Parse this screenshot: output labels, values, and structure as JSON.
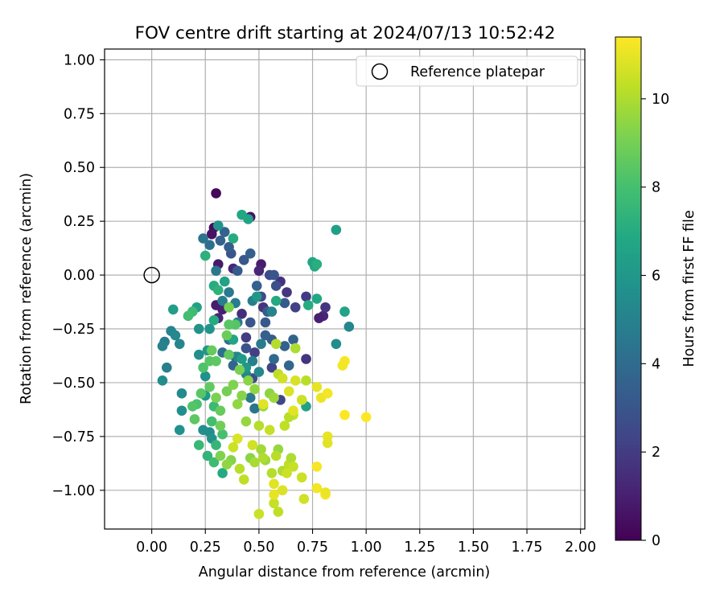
{
  "chart_data": {
    "type": "scatter",
    "title": "FOV centre drift starting at 2024/07/13 10:52:42",
    "xlabel": "Angular distance from reference (arcmin)",
    "ylabel": "Rotation from reference (arcmin)",
    "xlim": [
      -0.22,
      2.02
    ],
    "ylim": [
      -1.18,
      1.05
    ],
    "x_ticks": [
      0.0,
      0.25,
      0.5,
      0.75,
      1.0,
      1.25,
      1.5,
      1.75,
      2.0
    ],
    "x_tick_labels": [
      "0.00",
      "0.25",
      "0.50",
      "0.75",
      "1.00",
      "1.25",
      "1.50",
      "1.75",
      "2.00"
    ],
    "y_ticks": [
      -1.0,
      -0.75,
      -0.5,
      -0.25,
      0.0,
      0.25,
      0.5,
      0.75,
      1.0
    ],
    "y_tick_labels": [
      "−1.00",
      "−0.75",
      "−0.50",
      "−0.25",
      "0.00",
      "0.25",
      "0.50",
      "0.75",
      "1.00"
    ],
    "grid": true,
    "legend": {
      "placement": "top-right",
      "label": "Reference platepar"
    },
    "reference_point": {
      "x": 0.0,
      "y": 0.0
    },
    "colorbar": {
      "label": "Hours from first FF file",
      "range": [
        0,
        11.4
      ],
      "colormap": "viridis",
      "ticks": [
        0,
        2,
        4,
        6,
        8,
        10
      ],
      "tick_labels": [
        "0",
        "2",
        "4",
        "6",
        "8",
        "10"
      ]
    },
    "points": [
      [
        0.3,
        0.38,
        0.2
      ],
      [
        0.46,
        0.27,
        0.6
      ],
      [
        0.29,
        0.22,
        0.4
      ],
      [
        0.28,
        0.19,
        0.6
      ],
      [
        0.31,
        0.05,
        0.8
      ],
      [
        0.51,
        0.05,
        0.9
      ],
      [
        0.5,
        0.02,
        1.2
      ],
      [
        0.38,
        0.03,
        1.3
      ],
      [
        0.3,
        -0.14,
        0.9
      ],
      [
        0.33,
        -0.16,
        1.0
      ],
      [
        0.31,
        -0.2,
        1.2
      ],
      [
        0.42,
        -0.18,
        1.5
      ],
      [
        0.52,
        -0.15,
        1.7
      ],
      [
        0.6,
        -0.03,
        1.6
      ],
      [
        0.63,
        -0.08,
        1.8
      ],
      [
        0.72,
        -0.1,
        2.0
      ],
      [
        0.67,
        -0.15,
        2.2
      ],
      [
        0.72,
        -0.39,
        1.7
      ],
      [
        0.8,
        -0.19,
        1.2
      ],
      [
        0.78,
        -0.2,
        1.0
      ],
      [
        0.81,
        -0.15,
        1.8
      ],
      [
        0.44,
        -0.29,
        2.0
      ],
      [
        0.48,
        -0.36,
        2.1
      ],
      [
        0.56,
        -0.43,
        2.3
      ],
      [
        0.6,
        -0.58,
        2.4
      ],
      [
        0.47,
        -0.48,
        2.7
      ],
      [
        0.44,
        -0.34,
        2.9
      ],
      [
        0.46,
        -0.22,
        3.0
      ],
      [
        0.53,
        -0.22,
        3.2
      ],
      [
        0.56,
        -0.3,
        3.3
      ],
      [
        0.62,
        -0.33,
        3.5
      ],
      [
        0.66,
        -0.3,
        3.6
      ],
      [
        0.64,
        -0.42,
        3.8
      ],
      [
        0.57,
        -0.39,
        3.9
      ],
      [
        0.51,
        -0.1,
        2.5
      ],
      [
        0.55,
        0.0,
        2.6
      ],
      [
        0.58,
        -0.05,
        2.8
      ],
      [
        0.53,
        -0.28,
        3.4
      ],
      [
        0.38,
        -0.42,
        3.7
      ],
      [
        0.43,
        -0.44,
        3.8
      ],
      [
        0.39,
        -0.38,
        3.9
      ],
      [
        0.33,
        -0.36,
        4.1
      ],
      [
        0.36,
        -0.3,
        4.2
      ],
      [
        0.37,
        0.1,
        3.0
      ],
      [
        0.43,
        0.07,
        3.1
      ],
      [
        0.36,
        0.13,
        3.3
      ],
      [
        0.32,
        0.16,
        3.5
      ],
      [
        0.34,
        0.2,
        3.6
      ],
      [
        0.4,
        0.02,
        3.2
      ],
      [
        0.46,
        0.1,
        3.4
      ],
      [
        0.49,
        -0.05,
        3.5
      ],
      [
        0.54,
        -0.17,
        3.3
      ],
      [
        0.57,
        0.0,
        3.0
      ],
      [
        0.62,
        -0.13,
        3.2
      ],
      [
        0.27,
        0.14,
        4.2
      ],
      [
        0.24,
        0.17,
        4.4
      ],
      [
        0.3,
        0.02,
        4.5
      ],
      [
        0.36,
        -0.08,
        4.6
      ],
      [
        0.33,
        -0.12,
        4.8
      ],
      [
        0.39,
        -0.13,
        4.7
      ],
      [
        0.4,
        -0.22,
        4.6
      ],
      [
        0.47,
        -0.12,
        4.9
      ],
      [
        0.56,
        -0.17,
        5.0
      ],
      [
        0.51,
        -0.32,
        4.7
      ],
      [
        0.47,
        -0.4,
        4.9
      ],
      [
        0.4,
        -0.38,
        5.1
      ],
      [
        0.44,
        -0.46,
        5.2
      ],
      [
        0.5,
        -0.45,
        5.3
      ],
      [
        0.46,
        -0.57,
        4.6
      ],
      [
        0.48,
        -0.62,
        4.4
      ],
      [
        0.06,
        -0.31,
        4.8
      ],
      [
        0.05,
        -0.33,
        5.0
      ],
      [
        0.07,
        -0.43,
        4.9
      ],
      [
        0.09,
        -0.26,
        5.1
      ],
      [
        0.11,
        -0.28,
        5.3
      ],
      [
        0.13,
        -0.32,
        5.2
      ],
      [
        0.05,
        -0.49,
        5.5
      ],
      [
        0.14,
        -0.55,
        5.4
      ],
      [
        0.14,
        -0.63,
        5.6
      ],
      [
        0.13,
        -0.72,
        5.7
      ],
      [
        0.22,
        -0.37,
        5.6
      ],
      [
        0.22,
        -0.25,
        5.8
      ],
      [
        0.27,
        -0.25,
        5.9
      ],
      [
        0.26,
        -0.35,
        6.0
      ],
      [
        0.25,
        -0.47,
        5.7
      ],
      [
        0.27,
        -0.73,
        5.5
      ],
      [
        0.28,
        -0.76,
        5.8
      ],
      [
        0.24,
        -0.72,
        5.6
      ],
      [
        0.25,
        -0.56,
        6.1
      ],
      [
        0.21,
        -0.15,
        6.5
      ],
      [
        0.1,
        -0.16,
        6.3
      ],
      [
        0.92,
        -0.24,
        5.2
      ],
      [
        0.86,
        -0.32,
        5.5
      ],
      [
        0.9,
        -0.17,
        6.6
      ],
      [
        0.77,
        -0.11,
        6.8
      ],
      [
        0.73,
        -0.14,
        7.0
      ],
      [
        0.76,
        0.04,
        6.9
      ],
      [
        0.75,
        0.06,
        6.7
      ],
      [
        0.77,
        0.05,
        7.1
      ],
      [
        0.86,
        0.21,
        6.4
      ],
      [
        0.45,
        0.26,
        6.6
      ],
      [
        0.42,
        0.28,
        6.8
      ],
      [
        0.38,
        0.17,
        7.0
      ],
      [
        0.31,
        0.23,
        5.9
      ],
      [
        0.25,
        0.09,
        7.2
      ],
      [
        0.29,
        -0.05,
        7.0
      ],
      [
        0.31,
        -0.07,
        7.3
      ],
      [
        0.34,
        -0.03,
        6.5
      ],
      [
        0.49,
        -0.1,
        6.0
      ],
      [
        0.58,
        -0.12,
        6.9
      ],
      [
        0.42,
        -0.39,
        6.2
      ],
      [
        0.44,
        -0.43,
        6.0
      ],
      [
        0.38,
        -0.3,
        6.7
      ],
      [
        0.29,
        -0.21,
        7.0
      ],
      [
        0.72,
        -0.61,
        6.5
      ],
      [
        0.19,
        -0.17,
        7.8
      ],
      [
        0.17,
        -0.19,
        7.9
      ],
      [
        0.22,
        -0.79,
        7.6
      ],
      [
        0.3,
        -0.79,
        7.5
      ],
      [
        0.33,
        -0.92,
        6.9
      ],
      [
        0.26,
        -0.84,
        7.4
      ],
      [
        0.29,
        -0.87,
        7.8
      ],
      [
        0.33,
        -0.74,
        8.0
      ],
      [
        0.28,
        -0.68,
        7.9
      ],
      [
        0.29,
        -0.61,
        7.7
      ],
      [
        0.21,
        -0.6,
        8.1
      ],
      [
        0.19,
        -0.61,
        8.3
      ],
      [
        0.2,
        -0.67,
        8.5
      ],
      [
        0.23,
        -0.55,
        8.4
      ],
      [
        0.27,
        -0.52,
        8.6
      ],
      [
        0.24,
        -0.43,
        8.2
      ],
      [
        0.27,
        -0.4,
        8.4
      ],
      [
        0.28,
        -0.35,
        8.7
      ],
      [
        0.3,
        -0.4,
        8.5
      ],
      [
        0.36,
        -0.37,
        8.6
      ],
      [
        0.39,
        -0.23,
        8.3
      ],
      [
        0.36,
        -0.23,
        8.4
      ],
      [
        0.35,
        -0.28,
        8.8
      ],
      [
        0.36,
        -0.15,
        9.0
      ],
      [
        0.32,
        -0.63,
        8.7
      ],
      [
        0.32,
        -0.7,
        8.9
      ],
      [
        0.3,
        -0.57,
        9.1
      ],
      [
        0.35,
        -0.54,
        9.0
      ],
      [
        0.38,
        -0.51,
        9.2
      ],
      [
        0.41,
        -0.44,
        9.1
      ],
      [
        0.42,
        -0.56,
        9.3
      ],
      [
        0.45,
        -0.49,
        9.4
      ],
      [
        0.48,
        -0.53,
        9.5
      ],
      [
        0.52,
        -0.61,
        9.6
      ],
      [
        0.55,
        -0.55,
        9.4
      ],
      [
        0.57,
        -0.57,
        9.7
      ],
      [
        0.4,
        -0.6,
        9.5
      ],
      [
        0.44,
        -0.68,
        9.6
      ],
      [
        0.37,
        -0.86,
        9.3
      ],
      [
        0.35,
        -0.88,
        9.5
      ],
      [
        0.32,
        -0.84,
        9.2
      ],
      [
        0.46,
        -0.85,
        9.4
      ],
      [
        0.51,
        -0.81,
        9.8
      ],
      [
        0.53,
        -0.86,
        9.7
      ],
      [
        0.59,
        -0.81,
        9.6
      ],
      [
        0.48,
        -0.87,
        9.9
      ],
      [
        0.52,
        -0.85,
        10.0
      ],
      [
        0.56,
        -0.92,
        10.1
      ],
      [
        0.61,
        -0.91,
        10.0
      ],
      [
        0.58,
        -0.84,
        10.2
      ],
      [
        0.64,
        -0.88,
        10.3
      ],
      [
        0.65,
        -0.85,
        10.0
      ],
      [
        0.41,
        -0.9,
        10.2
      ],
      [
        0.43,
        -0.95,
        10.3
      ],
      [
        0.5,
        -1.11,
        10.5
      ],
      [
        0.57,
        -1.06,
        10.4
      ],
      [
        0.59,
        -1.1,
        10.3
      ],
      [
        0.61,
        -1.0,
        10.8
      ],
      [
        0.57,
        -0.97,
        10.9
      ],
      [
        0.57,
        -1.02,
        11.0
      ],
      [
        0.71,
        -1.04,
        10.6
      ],
      [
        0.7,
        -0.94,
        10.5
      ],
      [
        0.66,
        -0.89,
        10.4
      ],
      [
        0.63,
        -0.92,
        10.5
      ],
      [
        0.66,
        -0.65,
        10.4
      ],
      [
        0.64,
        -0.66,
        10.2
      ],
      [
        0.67,
        -0.34,
        10.0
      ],
      [
        0.58,
        -0.32,
        10.1
      ],
      [
        0.59,
        -0.46,
        10.3
      ],
      [
        0.61,
        -0.48,
        10.6
      ],
      [
        0.64,
        -0.54,
        10.8
      ],
      [
        0.67,
        -0.49,
        10.7
      ],
      [
        0.72,
        -0.49,
        10.2
      ],
      [
        0.7,
        -0.58,
        10.5
      ],
      [
        0.66,
        -0.63,
        10.9
      ],
      [
        0.77,
        -0.99,
        11.2
      ],
      [
        0.81,
        -1.02,
        11.3
      ],
      [
        0.81,
        -1.01,
        11.1
      ],
      [
        0.82,
        -0.75,
        11.0
      ],
      [
        0.82,
        -0.78,
        10.9
      ],
      [
        0.77,
        -0.89,
        11.3
      ],
      [
        0.79,
        -0.57,
        11.1
      ],
      [
        0.82,
        -0.55,
        11.2
      ],
      [
        0.77,
        -0.52,
        11.0
      ],
      [
        0.9,
        -0.4,
        11.3
      ],
      [
        0.89,
        -0.42,
        11.2
      ],
      [
        0.9,
        -0.65,
        11.4
      ],
      [
        1.0,
        -0.66,
        11.4
      ],
      [
        0.52,
        -0.6,
        10.9
      ],
      [
        0.5,
        -0.7,
        10.1
      ],
      [
        0.55,
        -0.72,
        10.4
      ],
      [
        0.62,
        -0.7,
        10.3
      ],
      [
        0.4,
        -0.76,
        10.8
      ],
      [
        0.38,
        -0.8,
        10.5
      ],
      [
        0.47,
        -0.79,
        10.6
      ]
    ]
  }
}
